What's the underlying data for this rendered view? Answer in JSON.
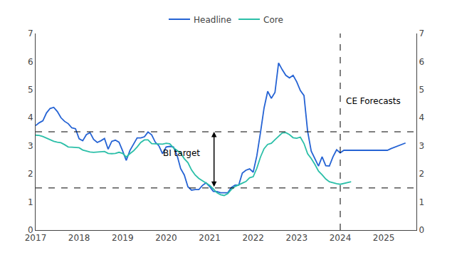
{
  "chart_data": {
    "type": "line",
    "series": [
      {
        "name": "Headline",
        "color": "#2563d4",
        "x": [
          2017.0,
          2017.083,
          2017.167,
          2017.25,
          2017.333,
          2017.417,
          2017.5,
          2017.583,
          2017.667,
          2017.75,
          2017.833,
          2017.917,
          2018.0,
          2018.083,
          2018.167,
          2018.25,
          2018.333,
          2018.417,
          2018.5,
          2018.583,
          2018.667,
          2018.75,
          2018.833,
          2018.917,
          2019.0,
          2019.083,
          2019.167,
          2019.25,
          2019.333,
          2019.417,
          2019.5,
          2019.583,
          2019.667,
          2019.75,
          2019.833,
          2019.917,
          2020.0,
          2020.083,
          2020.167,
          2020.25,
          2020.333,
          2020.417,
          2020.5,
          2020.583,
          2020.667,
          2020.75,
          2020.833,
          2020.917,
          2021.0,
          2021.083,
          2021.167,
          2021.25,
          2021.333,
          2021.417,
          2021.5,
          2021.583,
          2021.667,
          2021.75,
          2021.833,
          2021.917,
          2022.0,
          2022.083,
          2022.167,
          2022.25,
          2022.333,
          2022.417,
          2022.5,
          2022.583,
          2022.667,
          2022.75,
          2022.833,
          2022.917,
          2023.0,
          2023.083,
          2023.167,
          2023.25,
          2023.333,
          2023.417,
          2023.5,
          2023.583,
          2023.667,
          2023.75,
          2023.833,
          2023.917,
          2024.0,
          2024.083,
          2024.167,
          2024.25,
          2024.333,
          2024.417,
          2024.5,
          2024.583,
          2024.667,
          2024.75,
          2024.833,
          2024.917,
          2025.0,
          2025.083,
          2025.167,
          2025.25,
          2025.333,
          2025.417,
          2025.5
        ],
        "values": [
          3.72,
          3.82,
          3.89,
          4.17,
          4.33,
          4.37,
          4.22,
          4.0,
          3.87,
          3.79,
          3.64,
          3.61,
          3.25,
          3.18,
          3.4,
          3.47,
          3.23,
          3.12,
          3.18,
          3.26,
          2.88,
          3.16,
          3.2,
          3.13,
          2.82,
          2.48,
          2.83,
          3.04,
          3.28,
          3.28,
          3.32,
          3.49,
          3.39,
          3.13,
          3.0,
          2.72,
          2.96,
          2.98,
          2.96,
          2.67,
          2.19,
          1.96,
          1.54,
          1.42,
          1.44,
          1.44,
          1.59,
          1.68,
          1.55,
          1.38,
          1.37,
          1.33,
          1.33,
          1.33,
          1.52,
          1.6,
          1.6,
          2.03,
          2.13,
          2.18,
          2.06,
          2.64,
          3.47,
          4.35,
          4.94,
          4.69,
          4.9,
          5.95,
          5.71,
          5.51,
          5.42,
          5.51,
          5.28,
          4.97,
          4.79,
          3.52,
          2.81,
          2.56,
          2.28,
          2.61,
          2.29,
          2.28,
          2.61,
          2.86,
          2.75,
          2.84,
          2.84,
          2.84,
          2.84,
          2.84,
          2.84,
          2.84,
          2.84,
          2.84,
          2.84,
          2.84,
          2.84,
          2.84,
          2.9,
          2.95,
          3.0,
          3.05,
          3.1
        ]
      },
      {
        "name": "Core",
        "color": "#2bbfa8",
        "x": [
          2017.0,
          2017.083,
          2017.167,
          2017.25,
          2017.333,
          2017.417,
          2017.5,
          2017.583,
          2017.667,
          2017.75,
          2017.833,
          2017.917,
          2018.0,
          2018.083,
          2018.167,
          2018.25,
          2018.333,
          2018.417,
          2018.5,
          2018.583,
          2018.667,
          2018.75,
          2018.833,
          2018.917,
          2019.0,
          2019.083,
          2019.167,
          2019.25,
          2019.333,
          2019.417,
          2019.5,
          2019.583,
          2019.667,
          2019.75,
          2019.833,
          2019.917,
          2020.0,
          2020.083,
          2020.167,
          2020.25,
          2020.333,
          2020.417,
          2020.5,
          2020.583,
          2020.667,
          2020.75,
          2020.833,
          2020.917,
          2021.0,
          2021.083,
          2021.167,
          2021.25,
          2021.333,
          2021.417,
          2021.5,
          2021.583,
          2021.667,
          2021.75,
          2021.833,
          2021.917,
          2022.0,
          2022.083,
          2022.167,
          2022.25,
          2022.333,
          2022.417,
          2022.5,
          2022.583,
          2022.667,
          2022.75,
          2022.833,
          2022.917,
          2023.0,
          2023.083,
          2023.167,
          2023.25,
          2023.333,
          2023.417,
          2023.5,
          2023.583,
          2023.667,
          2023.75,
          2023.833,
          2023.917,
          2024.0,
          2024.083,
          2024.167,
          2024.25
        ],
        "values": [
          3.38,
          3.37,
          3.33,
          3.27,
          3.23,
          3.16,
          3.13,
          3.11,
          3.04,
          2.96,
          2.95,
          2.94,
          2.93,
          2.85,
          2.82,
          2.78,
          2.77,
          2.78,
          2.79,
          2.8,
          2.73,
          2.72,
          2.73,
          2.77,
          2.73,
          2.6,
          2.72,
          2.82,
          2.96,
          3.12,
          3.21,
          3.21,
          3.08,
          3.07,
          3.07,
          3.06,
          3.09,
          3.07,
          2.93,
          2.83,
          2.74,
          2.54,
          2.4,
          2.14,
          1.96,
          1.84,
          1.76,
          1.68,
          1.59,
          1.47,
          1.33,
          1.26,
          1.23,
          1.3,
          1.45,
          1.55,
          1.62,
          1.67,
          1.73,
          1.86,
          1.9,
          2.2,
          2.6,
          2.9,
          3.05,
          3.09,
          3.22,
          3.35,
          3.46,
          3.47,
          3.4,
          3.29,
          3.27,
          3.31,
          3.08,
          2.72,
          2.55,
          2.34,
          2.1,
          1.97,
          1.82,
          1.72,
          1.68,
          1.65,
          1.63,
          1.66,
          1.7,
          1.72
        ]
      }
    ],
    "hlines": [
      3.5,
      1.5
    ],
    "vlines": [
      2024.0
    ],
    "annotations": [
      {
        "text": "BI target",
        "x": 2019.9,
        "y": 2.75,
        "arrow": {
          "x": 2021.1,
          "y": [
            1.5,
            3.5
          ]
        }
      },
      {
        "text": "CE Forecasts",
        "x": 2024.1,
        "y": 4.6
      }
    ],
    "xlim": [
      2017.0,
      2025.75
    ],
    "xticks": [
      2017,
      2018,
      2019,
      2020,
      2021,
      2022,
      2023,
      2024,
      2025
    ],
    "ylim": [
      0,
      7
    ],
    "yticks": [
      0,
      1,
      2,
      3,
      4,
      5,
      6,
      7
    ],
    "y2lim": [
      0,
      7
    ],
    "y2ticks": [
      0,
      1,
      2,
      3,
      4,
      5,
      6,
      7
    ],
    "grid": false,
    "legend": "top"
  }
}
